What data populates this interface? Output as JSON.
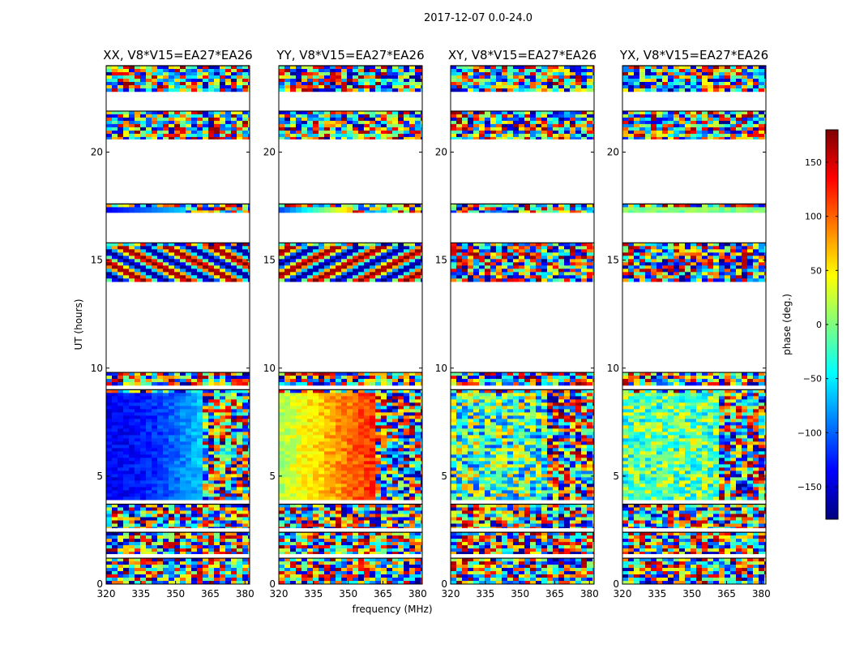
{
  "chart_data": {
    "type": "heatmap",
    "suptitle": "2017-12-07 0.0-24.0",
    "xlabel": "frequency (MHz)",
    "ylabel": "UT (hours)",
    "xlim": [
      320,
      382
    ],
    "ylim": [
      0,
      24
    ],
    "xticks": [
      320,
      335,
      350,
      365,
      380
    ],
    "yticks": [
      0,
      5,
      10,
      15,
      20
    ],
    "colorbar": {
      "label": "phase (deg.)",
      "range": [
        -180,
        180
      ],
      "ticks": [
        150,
        100,
        50,
        0,
        -50,
        -100,
        -150
      ],
      "tick_labels": [
        "150",
        "100",
        "50",
        "0",
        "−50",
        "−100",
        "−150"
      ],
      "colormap": "jet",
      "colors": [
        "#00007f",
        "#0000ff",
        "#007fff",
        "#00ffff",
        "#7fff7f",
        "#ffff00",
        "#ff7f00",
        "#ff0000",
        "#7f0000"
      ]
    },
    "panels": [
      {
        "title": "XX, V8*V15=EA27*EA26",
        "pattern": "strong-gradient-blue"
      },
      {
        "title": "YY, V8*V15=EA27*EA26",
        "pattern": "strong-gradient-red"
      },
      {
        "title": "XY, V8*V15=EA27*EA26",
        "pattern": "weak-noise-blue"
      },
      {
        "title": "YX, V8*V15=EA27*EA26",
        "pattern": "weak-noise-green"
      }
    ],
    "data_time_ranges_hours": [
      [
        0.0,
        1.2
      ],
      [
        1.4,
        2.4
      ],
      [
        2.6,
        3.7
      ],
      [
        3.9,
        9.0
      ],
      [
        9.2,
        9.8
      ],
      [
        14.0,
        15.8
      ],
      [
        17.2,
        17.6
      ],
      [
        20.6,
        21.9
      ],
      [
        22.8,
        24.0
      ]
    ]
  }
}
